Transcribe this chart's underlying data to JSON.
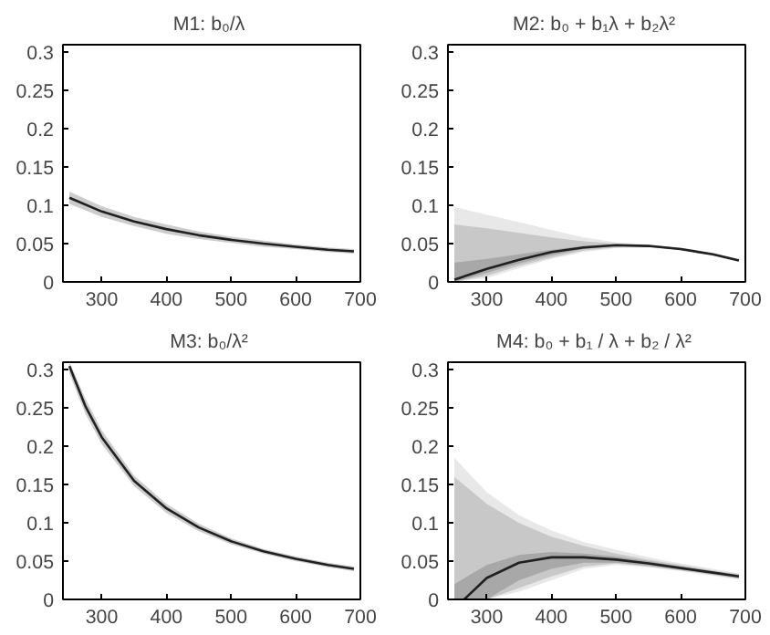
{
  "chart_data": [
    {
      "type": "line",
      "title": "M1:  b₀/λ",
      "xlim": [
        240,
        700
      ],
      "ylim": [
        0,
        0.31
      ],
      "xticks": [
        300,
        400,
        500,
        600,
        700
      ],
      "yticks": [
        0,
        0.05,
        0.1,
        0.15,
        0.2,
        0.25,
        0.3
      ],
      "grid": false,
      "series": [
        {
          "color": "#cccccc",
          "x": [
            250,
            300,
            350,
            400,
            450,
            500,
            550,
            600,
            650,
            690
          ],
          "values": [
            null,
            null,
            null,
            null,
            null,
            null,
            null,
            null,
            null,
            null
          ],
          "upper": [
            0.118,
            0.099,
            0.085,
            0.075,
            0.066,
            0.059,
            0.054,
            0.049,
            0.045,
            0.043
          ],
          "lower": [
            0.102,
            0.085,
            0.073,
            0.063,
            0.056,
            0.051,
            0.046,
            0.043,
            0.039,
            0.037
          ]
        },
        {
          "color": "#202020",
          "x": [
            250,
            300,
            350,
            400,
            450,
            500,
            550,
            600,
            650,
            690
          ],
          "values": [
            0.11,
            0.092,
            0.079,
            0.069,
            0.061,
            0.055,
            0.05,
            0.046,
            0.042,
            0.04
          ]
        }
      ]
    },
    {
      "type": "line",
      "title": "M2:  b₀ + b₁λ + b₂λ²",
      "xlim": [
        240,
        700
      ],
      "ylim": [
        0,
        0.31
      ],
      "xticks": [
        300,
        400,
        500,
        600,
        700
      ],
      "yticks": [
        0,
        0.05,
        0.1,
        0.15,
        0.2,
        0.25,
        0.3
      ],
      "grid": false,
      "series": [
        {
          "color": "#e8e8e8",
          "x": [
            250,
            300,
            350,
            400,
            450,
            500,
            550,
            600,
            650,
            690
          ],
          "values": [
            null,
            null,
            null,
            null,
            null,
            null,
            null,
            null,
            null,
            null
          ],
          "upper": [
            0.098,
            0.088,
            0.078,
            0.068,
            0.058,
            0.052,
            0.049,
            0.045,
            0.038,
            0.03
          ],
          "lower": [
            0,
            0.005,
            0.018,
            0.03,
            0.039,
            0.044,
            0.045,
            0.041,
            0.034,
            0.026
          ]
        },
        {
          "color": "#c8c8c8",
          "x": [
            250,
            300,
            350,
            400,
            450,
            500,
            550,
            600,
            650,
            690
          ],
          "values": [
            null,
            null,
            null,
            null,
            null,
            null,
            null,
            null,
            null,
            null
          ],
          "upper": [
            0.075,
            0.07,
            0.064,
            0.058,
            0.053,
            0.05,
            0.048,
            0.044,
            0.037,
            0.029
          ],
          "lower": [
            0,
            0.008,
            0.021,
            0.032,
            0.041,
            0.045,
            0.046,
            0.042,
            0.035,
            0.027
          ]
        },
        {
          "color": "#a8a8a8",
          "x": [
            250,
            300,
            350,
            400,
            450,
            500,
            550,
            600,
            650,
            690
          ],
          "values": [
            null,
            null,
            null,
            null,
            null,
            null,
            null,
            null,
            null,
            null
          ],
          "upper": [
            0.025,
            0.03,
            0.036,
            0.042,
            0.047,
            0.049,
            0.048,
            0.044,
            0.037,
            0.029
          ],
          "lower": [
            0,
            0.012,
            0.024,
            0.035,
            0.043,
            0.047,
            0.046,
            0.042,
            0.035,
            0.027
          ]
        },
        {
          "color": "#202020",
          "x": [
            250,
            300,
            350,
            400,
            450,
            500,
            550,
            600,
            650,
            690
          ],
          "values": [
            0.003,
            0.017,
            0.029,
            0.039,
            0.045,
            0.048,
            0.047,
            0.043,
            0.036,
            0.028
          ]
        }
      ]
    },
    {
      "type": "line",
      "title": "M3:  b₀/λ²",
      "xlim": [
        240,
        700
      ],
      "ylim": [
        0,
        0.31
      ],
      "xticks": [
        300,
        400,
        500,
        600,
        700
      ],
      "yticks": [
        0,
        0.05,
        0.1,
        0.15,
        0.2,
        0.25,
        0.3
      ],
      "grid": false,
      "series": [
        {
          "color": "#cccccc",
          "x": [
            250,
            275,
            300,
            350,
            400,
            450,
            500,
            550,
            600,
            650,
            690
          ],
          "values": [
            null,
            null,
            null,
            null,
            null,
            null,
            null,
            null,
            null,
            null,
            null
          ],
          "upper": [
            0.31,
            0.262,
            0.221,
            0.162,
            0.125,
            0.099,
            0.08,
            0.066,
            0.056,
            0.048,
            0.043
          ],
          "lower": [
            0.295,
            0.242,
            0.203,
            0.148,
            0.113,
            0.089,
            0.072,
            0.06,
            0.05,
            0.042,
            0.037
          ]
        },
        {
          "color": "#202020",
          "x": [
            250,
            275,
            300,
            350,
            400,
            450,
            500,
            550,
            600,
            650,
            690
          ],
          "values": [
            0.305,
            0.252,
            0.212,
            0.155,
            0.119,
            0.094,
            0.076,
            0.063,
            0.053,
            0.045,
            0.04
          ]
        }
      ]
    },
    {
      "type": "line",
      "title": "M4:  b₀ + b₁ / λ + b₂ / λ²",
      "xlim": [
        240,
        700
      ],
      "ylim": [
        0,
        0.31
      ],
      "xticks": [
        300,
        400,
        500,
        600,
        700
      ],
      "yticks": [
        0,
        0.05,
        0.1,
        0.15,
        0.2,
        0.25,
        0.3
      ],
      "grid": false,
      "series": [
        {
          "color": "#e8e8e8",
          "x": [
            250,
            300,
            350,
            400,
            450,
            500,
            550,
            600,
            650,
            690
          ],
          "values": [
            null,
            null,
            null,
            null,
            null,
            null,
            null,
            null,
            null,
            null
          ],
          "upper": [
            0.185,
            0.14,
            0.11,
            0.09,
            0.075,
            0.065,
            0.055,
            0.047,
            0.04,
            0.034
          ],
          "lower": [
            0,
            0,
            0.01,
            0.025,
            0.04,
            0.045,
            0.042,
            0.037,
            0.031,
            0.026
          ]
        },
        {
          "color": "#c8c8c8",
          "x": [
            250,
            300,
            350,
            400,
            450,
            500,
            550,
            600,
            650,
            690
          ],
          "values": [
            null,
            null,
            null,
            null,
            null,
            null,
            null,
            null,
            null,
            null
          ],
          "upper": [
            0.16,
            0.125,
            0.1,
            0.082,
            0.07,
            0.06,
            0.052,
            0.045,
            0.038,
            0.033
          ],
          "lower": [
            0,
            0,
            0.015,
            0.03,
            0.043,
            0.047,
            0.043,
            0.038,
            0.032,
            0.027
          ]
        },
        {
          "color": "#a8a8a8",
          "x": [
            250,
            300,
            350,
            400,
            450,
            500,
            550,
            600,
            650,
            690
          ],
          "values": [
            null,
            null,
            null,
            null,
            null,
            null,
            null,
            null,
            null,
            null
          ],
          "upper": [
            0.02,
            0.045,
            0.058,
            0.062,
            0.06,
            0.056,
            0.05,
            0.043,
            0.037,
            0.032
          ],
          "lower": [
            0,
            0,
            0.025,
            0.04,
            0.048,
            0.048,
            0.044,
            0.039,
            0.033,
            0.028
          ]
        },
        {
          "color": "#202020",
          "x": [
            265,
            300,
            350,
            400,
            450,
            500,
            550,
            600,
            650,
            690
          ],
          "values": [
            0,
            0.028,
            0.048,
            0.055,
            0.055,
            0.052,
            0.047,
            0.041,
            0.035,
            0.03
          ]
        }
      ]
    }
  ]
}
